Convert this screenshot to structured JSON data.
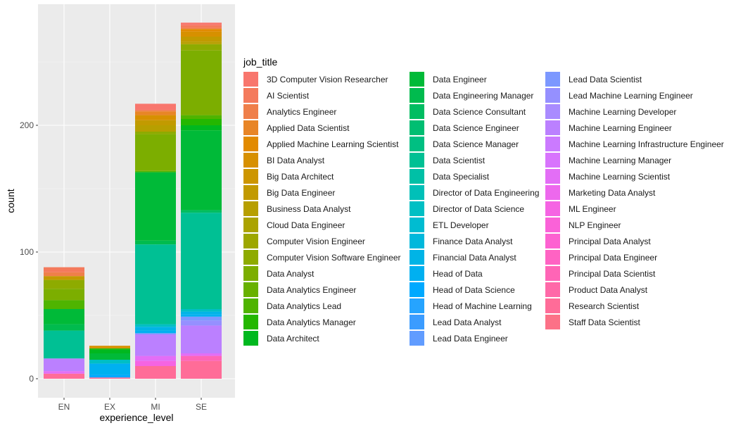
{
  "chart_data": {
    "type": "bar",
    "stacked": true,
    "xlabel": "experience_level",
    "ylabel": "count",
    "categories": [
      "EN",
      "EX",
      "MI",
      "SE"
    ],
    "totals": [
      88,
      26,
      213,
      280
    ],
    "ylim": [
      0,
      280
    ],
    "yticks": [
      0,
      100,
      200
    ],
    "legend_title": "job_title",
    "legend_position": "right",
    "job_titles": [
      {
        "name": "3D Computer Vision Researcher",
        "color": "#F8766D"
      },
      {
        "name": "AI Scientist",
        "color": "#F47A5C"
      },
      {
        "name": "Analytics Engineer",
        "color": "#EF7F4A"
      },
      {
        "name": "Applied Data Scientist",
        "color": "#E88526"
      },
      {
        "name": "Applied Machine Learning Scientist",
        "color": "#E28A00"
      },
      {
        "name": "BI Data Analyst",
        "color": "#D79000"
      },
      {
        "name": "Big Data Architect",
        "color": "#CD9600"
      },
      {
        "name": "Big Data Engineer",
        "color": "#C29A00"
      },
      {
        "name": "Business Data Analyst",
        "color": "#B79F00"
      },
      {
        "name": "Cloud Data Engineer",
        "color": "#ABA300"
      },
      {
        "name": "Computer Vision Engineer",
        "color": "#9DA700"
      },
      {
        "name": "Computer Vision Software Engineer",
        "color": "#8EAB00"
      },
      {
        "name": "Data Analyst",
        "color": "#7CAE00"
      },
      {
        "name": "Data Analytics Engineer",
        "color": "#68B100"
      },
      {
        "name": "Data Analytics Lead",
        "color": "#4FB400"
      },
      {
        "name": "Data Analytics Manager",
        "color": "#24B700"
      },
      {
        "name": "Data Architect",
        "color": "#00B81F"
      },
      {
        "name": "Data Engineer",
        "color": "#00BA38"
      },
      {
        "name": "Data Engineering Manager",
        "color": "#00BB4E"
      },
      {
        "name": "Data Science Consultant",
        "color": "#00BD61"
      },
      {
        "name": "Data Science Engineer",
        "color": "#00BE72"
      },
      {
        "name": "Data Science Manager",
        "color": "#00BF82"
      },
      {
        "name": "Data Scientist",
        "color": "#00C094"
      },
      {
        "name": "Data Specialist",
        "color": "#00C0A6"
      },
      {
        "name": "Director of Data Engineering",
        "color": "#00C0B8"
      },
      {
        "name": "Director of Data Science",
        "color": "#00BFC4"
      },
      {
        "name": "ETL Developer",
        "color": "#00BCD1"
      },
      {
        "name": "Finance Data Analyst",
        "color": "#00B8DC"
      },
      {
        "name": "Financial Data Analyst",
        "color": "#00B4E6"
      },
      {
        "name": "Head of Data",
        "color": "#00B0F0"
      },
      {
        "name": "Head of Data Science",
        "color": "#00A9FF"
      },
      {
        "name": "Head of Machine Learning",
        "color": "#26A4FF"
      },
      {
        "name": "Lead Data Analyst",
        "color": "#3B9CFF"
      },
      {
        "name": "Lead Data Engineer",
        "color": "#619CFF"
      },
      {
        "name": "Lead Data Scientist",
        "color": "#7C98FF"
      },
      {
        "name": "Lead Machine Learning Engineer",
        "color": "#9590FF"
      },
      {
        "name": "Machine Learning Developer",
        "color": "#A98BFF"
      },
      {
        "name": "Machine Learning Engineer",
        "color": "#BB80FF"
      },
      {
        "name": "Machine Learning Infrastructure Engineer",
        "color": "#CB7AFF"
      },
      {
        "name": "Machine Learning Manager",
        "color": "#D874FD"
      },
      {
        "name": "Machine Learning Scientist",
        "color": "#E36EF6"
      },
      {
        "name": "Marketing Data Analyst",
        "color": "#ED68ED"
      },
      {
        "name": "ML Engineer",
        "color": "#F564E3"
      },
      {
        "name": "NLP Engineer",
        "color": "#FA62D8"
      },
      {
        "name": "Principal Data Analyst",
        "color": "#FD61D1"
      },
      {
        "name": "Principal Data Engineer",
        "color": "#FF63C3"
      },
      {
        "name": "Principal Data Scientist",
        "color": "#FF65B6"
      },
      {
        "name": "Product Data Analyst",
        "color": "#FF69A8"
      },
      {
        "name": "Research Scientist",
        "color": "#FF6C98"
      },
      {
        "name": "Staff Data Scientist",
        "color": "#FC7187"
      }
    ],
    "series_approx": {
      "EN": [
        {
          "job": "Research Scientist",
          "value": 4
        },
        {
          "job": "Machine Learning Scientist",
          "value": 2
        },
        {
          "job": "Machine Learning Engineer",
          "value": 10
        },
        {
          "job": "Data Scientist",
          "value": 22
        },
        {
          "job": "Data Engineering Manager",
          "value": 5
        },
        {
          "job": "Data Engineer",
          "value": 12
        },
        {
          "job": "Data Analytics Lead",
          "value": 7
        },
        {
          "job": "Data Analyst",
          "value": 9
        },
        {
          "job": "Computer Vision Software Engineer",
          "value": 7
        },
        {
          "job": "Big Data Engineer",
          "value": 3
        },
        {
          "job": "Analytics Engineer",
          "value": 3
        },
        {
          "job": "AI Scientist",
          "value": 4
        }
      ],
      "EX": [
        {
          "job": "Research Scientist",
          "value": 1
        },
        {
          "job": "Head of Data Science",
          "value": 2
        },
        {
          "job": "Head of Data",
          "value": 9
        },
        {
          "job": "Director of Data Science",
          "value": 3
        },
        {
          "job": "Data Engineer",
          "value": 5
        },
        {
          "job": "Data Architect",
          "value": 3
        },
        {
          "job": "Data Analytics Manager",
          "value": 1
        },
        {
          "job": "BI Data Analyst",
          "value": 2
        }
      ],
      "MI": [
        {
          "job": "Research Scientist",
          "value": 10
        },
        {
          "job": "ML Engineer",
          "value": 4
        },
        {
          "job": "Machine Learning Scientist",
          "value": 4
        },
        {
          "job": "Machine Learning Engineer",
          "value": 17
        },
        {
          "job": "Lead Data Scientist",
          "value": 1
        },
        {
          "job": "Head of Data",
          "value": 2
        },
        {
          "job": "Financial Data Analyst",
          "value": 3
        },
        {
          "job": "Director of Data Science",
          "value": 2
        },
        {
          "job": "Data Scientist",
          "value": 63
        },
        {
          "job": "Data Engineering Manager",
          "value": 3
        },
        {
          "job": "Data Engineer",
          "value": 54
        },
        {
          "job": "Data Analytics Lead",
          "value": 1
        },
        {
          "job": "Data Analyst",
          "value": 29
        },
        {
          "job": "Computer Vision Software Engineer",
          "value": 2
        },
        {
          "job": "Business Data Analyst",
          "value": 5
        },
        {
          "job": "Big Data Engineer",
          "value": 4
        },
        {
          "job": "BI Data Analyst",
          "value": 4
        },
        {
          "job": "Applied Data Scientist",
          "value": 3
        },
        {
          "job": "Analytics Engineer",
          "value": 1
        },
        {
          "job": "3D Computer Vision Researcher",
          "value": 5
        }
      ],
      "SE": [
        {
          "job": "Research Scientist",
          "value": 14
        },
        {
          "job": "Principal Data Scientist",
          "value": 4
        },
        {
          "job": "Machine Learning Scientist",
          "value": 2
        },
        {
          "job": "Machine Learning Engineer",
          "value": 22
        },
        {
          "job": "Lead Machine Learning Engineer",
          "value": 4
        },
        {
          "job": "Lead Data Scientist",
          "value": 3
        },
        {
          "job": "Head of Data",
          "value": 2
        },
        {
          "job": "Financial Data Analyst",
          "value": 2
        },
        {
          "job": "Director of Data Science",
          "value": 2
        },
        {
          "job": "Data Scientist",
          "value": 76
        },
        {
          "job": "Data Science Consultant",
          "value": 2
        },
        {
          "job": "Data Engineer",
          "value": 63
        },
        {
          "job": "Data Architect",
          "value": 4
        },
        {
          "job": "Data Analytics Manager",
          "value": 5
        },
        {
          "job": "Data Analytics Lead",
          "value": 3
        },
        {
          "job": "Data Analyst",
          "value": 51
        },
        {
          "job": "Computer Vision Software Engineer",
          "value": 5
        },
        {
          "job": "Business Data Analyst",
          "value": 2
        },
        {
          "job": "Big Data Engineer",
          "value": 4
        },
        {
          "job": "BI Data Analyst",
          "value": 4
        },
        {
          "job": "Applied Machine Learning Scientist",
          "value": 2
        },
        {
          "job": "Analytics Engineer",
          "value": 1
        },
        {
          "job": "AI Scientist",
          "value": 2
        },
        {
          "job": "3D Computer Vision Researcher",
          "value": 2
        }
      ]
    }
  }
}
